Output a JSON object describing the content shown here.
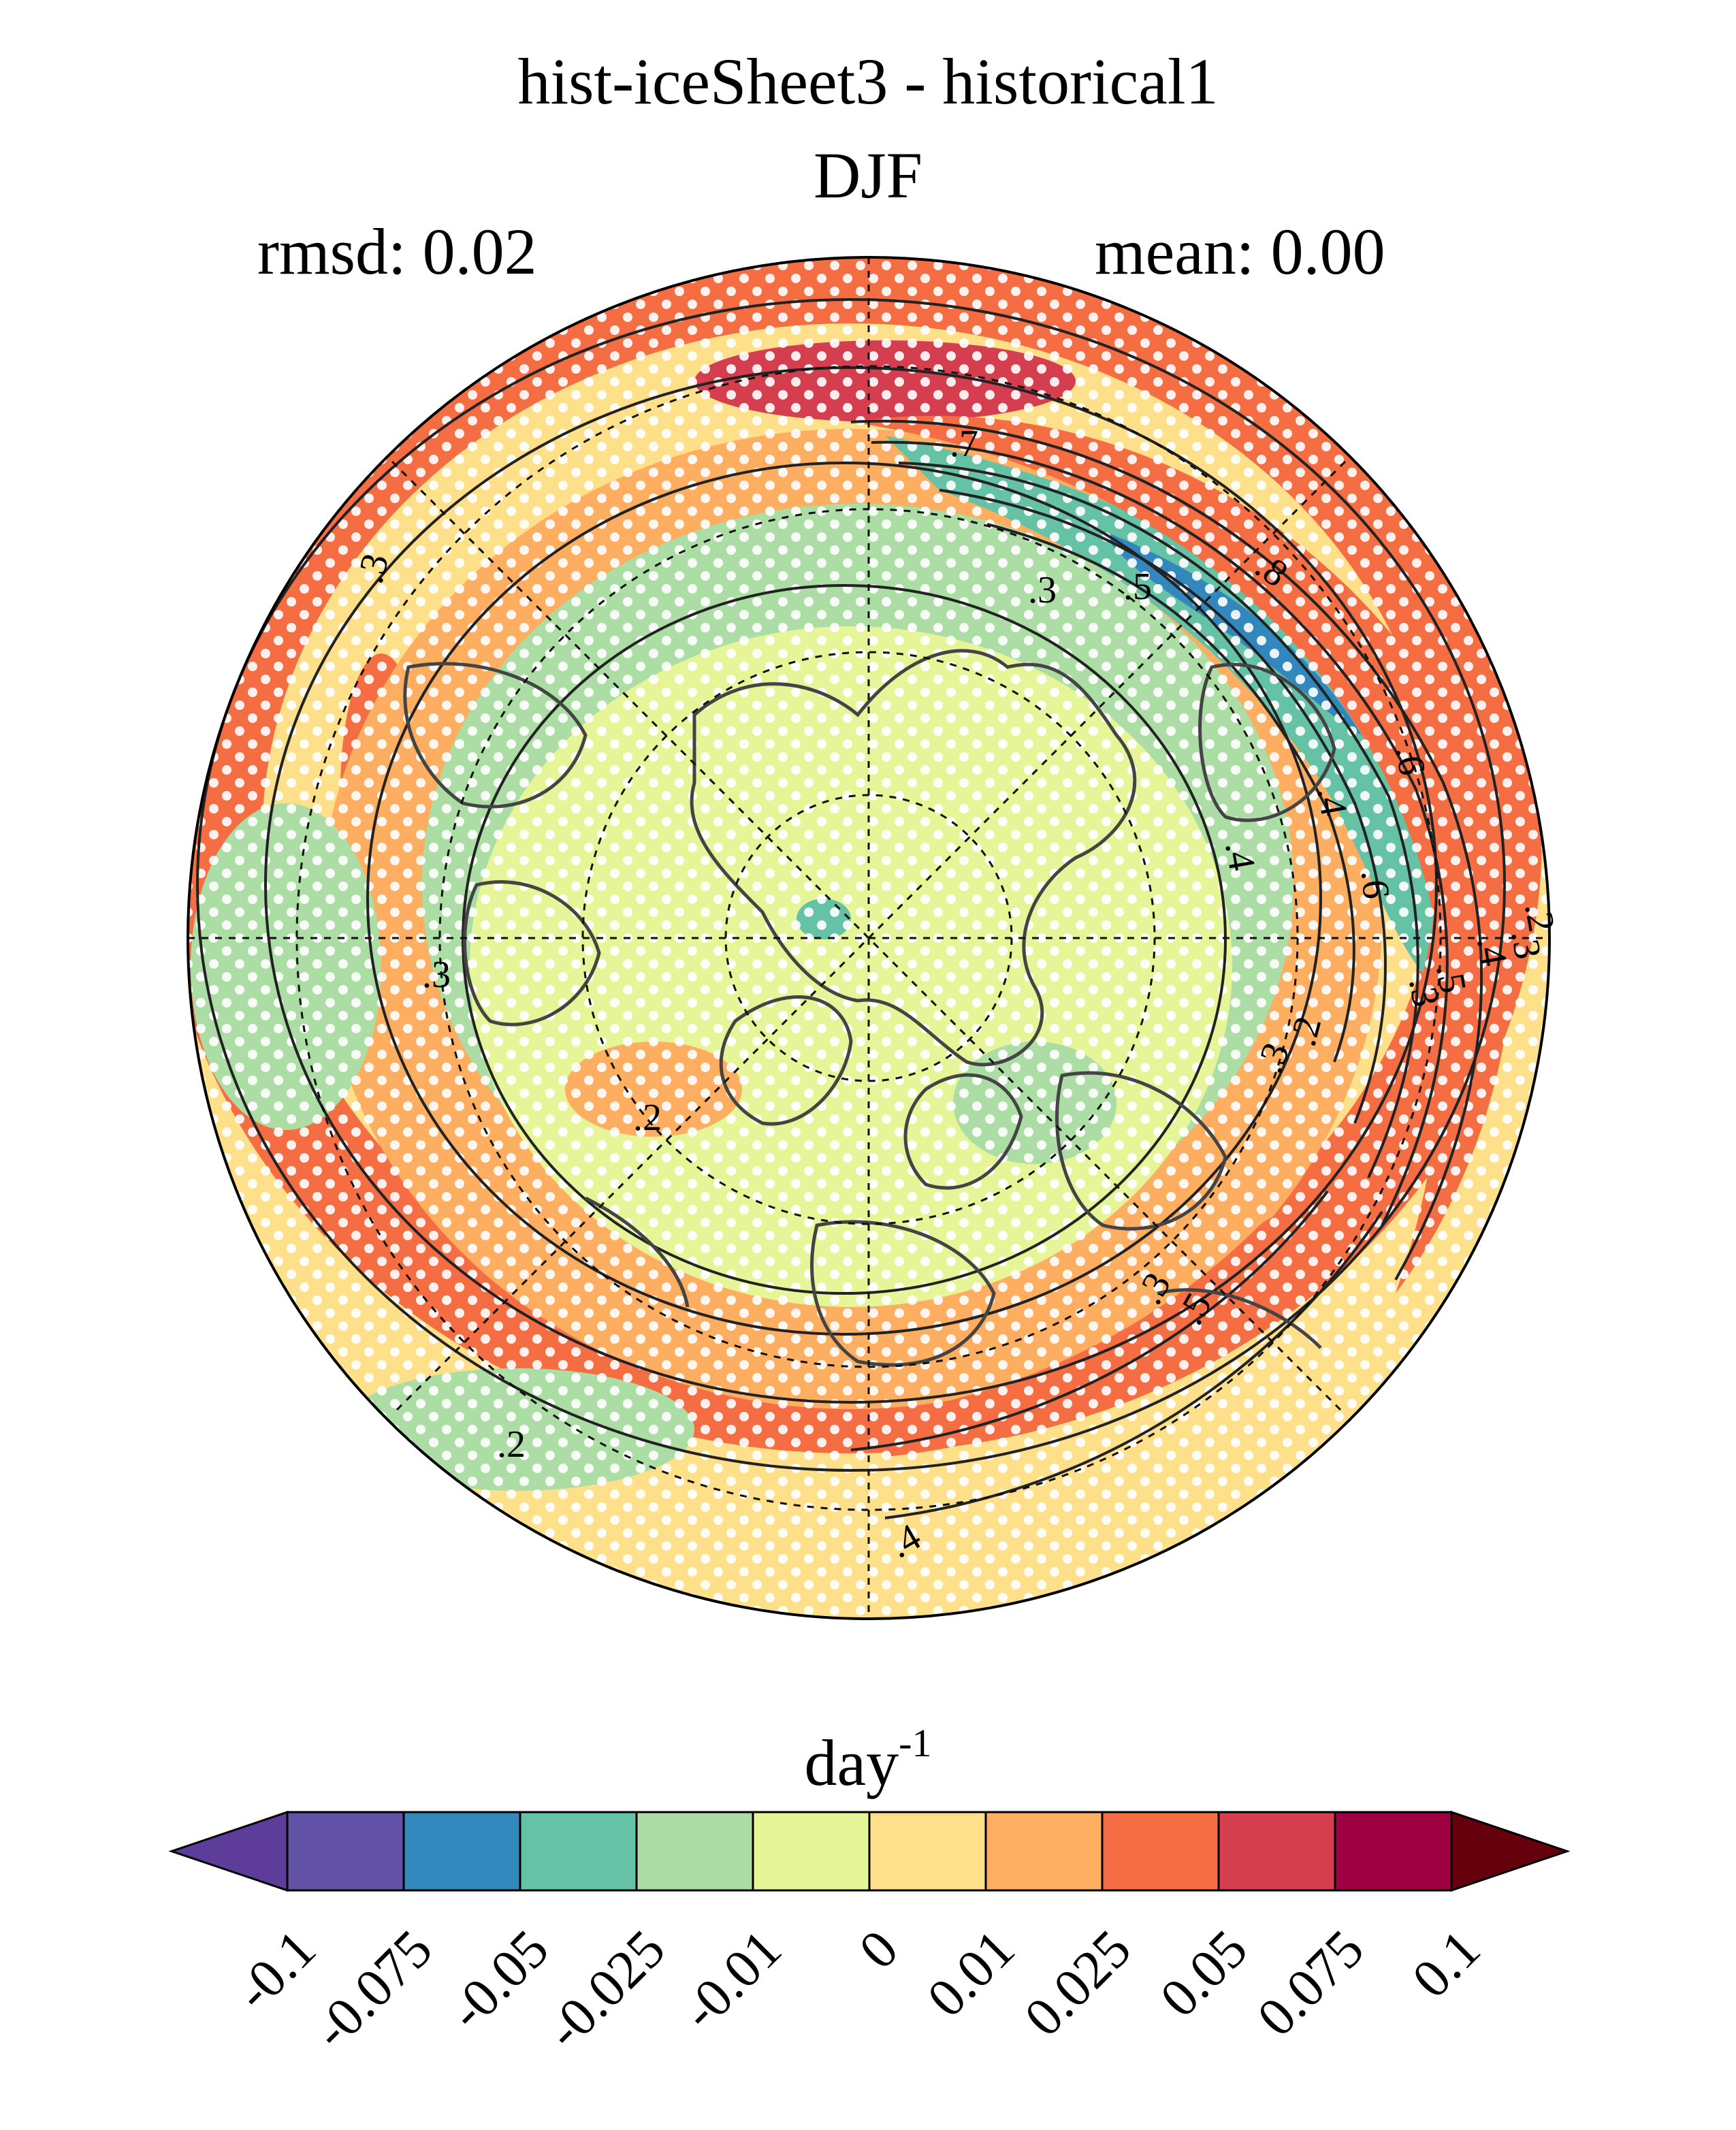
{
  "title": {
    "line1": "hist-iceSheet3 - historical1",
    "line2": "DJF"
  },
  "stats": {
    "rmsd_label": "rmsd: 0.02",
    "mean_label": "mean: 0.00"
  },
  "map": {
    "projection": "north-polar-stereographic",
    "fill_field": "difference (hist-iceSheet3 minus historical1)",
    "stippling": "white dots",
    "contour_labels": [
      ".7",
      ".3",
      ".3",
      ".5",
      ".8",
      ".3",
      ".2",
      ".3",
      ".2",
      ".2",
      ".6",
      ".4",
      ".6",
      ".4",
      ".5",
      ".3",
      ".2",
      ".3",
      ".4",
      ".5",
      ".3",
      ".4"
    ]
  },
  "colorbar": {
    "units_base": "day",
    "units_exponent": "-1",
    "tick_labels": [
      "-0.1",
      "-0.075",
      "-0.05",
      "-0.025",
      "-0.01",
      "0",
      "0.01",
      "0.025",
      "0.05",
      "0.075",
      "0.1"
    ],
    "colors": [
      "#5e3c99",
      "#6152a8",
      "#3288bd",
      "#66c2a5",
      "#abdda4",
      "#e6f598",
      "#fee08b",
      "#fdae61",
      "#f46d43",
      "#d53e4f",
      "#9e0142",
      "#67000d"
    ]
  }
}
